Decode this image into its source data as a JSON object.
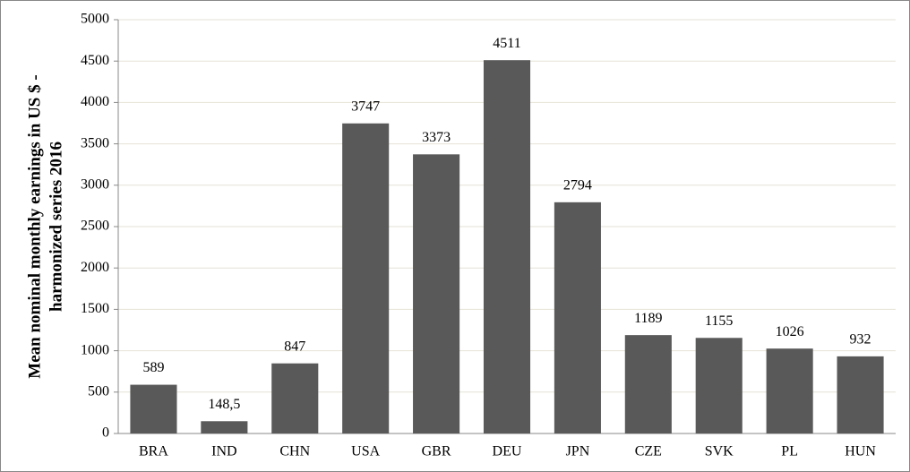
{
  "chart_data": {
    "type": "bar",
    "y_label": [
      "Mean nominal monthly earnings in US $ -",
      "harmonized series 2016"
    ],
    "categories": [
      "BRA",
      "IND",
      "CHN",
      "USA",
      "GBR",
      "DEU",
      "JPN",
      "CZE",
      "SVK",
      "PL",
      "HUN"
    ],
    "values": [
      589,
      148.5,
      847,
      3747,
      3373,
      4511,
      2794,
      1189,
      1155,
      1026,
      932
    ],
    "value_labels": [
      "589",
      "148,5",
      "847",
      "3747",
      "3373",
      "4511",
      "2794",
      "1189",
      "1155",
      "1026",
      "932"
    ],
    "color": "#595959",
    "ylim": [
      0,
      5000
    ],
    "yticks": [
      0,
      500,
      1000,
      1500,
      2000,
      2500,
      3000,
      3500,
      4000,
      4500,
      5000
    ],
    "grid": true
  }
}
